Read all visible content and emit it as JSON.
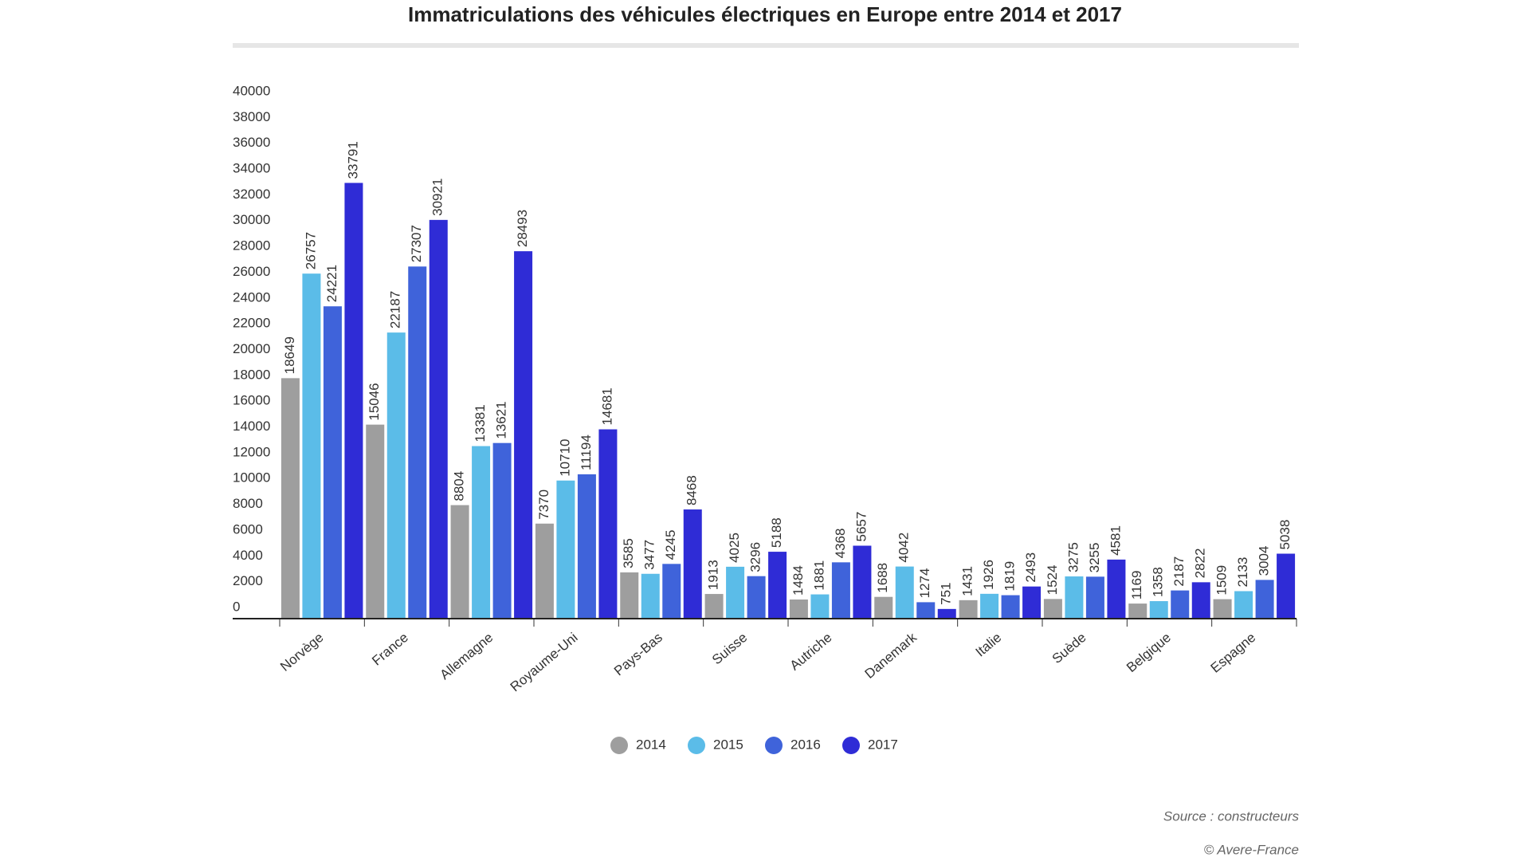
{
  "chart_data": {
    "type": "bar",
    "title": "Immatriculations des véhicules électriques en Europe entre 2014 et 2017",
    "categories": [
      "Norvège",
      "France",
      "Allemagne",
      "Royaume-Uni",
      "Pays-Bas",
      "Suisse",
      "Autriche",
      "Danemark",
      "Italie",
      "Suède",
      "Belgique",
      "Espagne"
    ],
    "series": [
      {
        "name": "2014",
        "color": "#9e9e9e",
        "values": [
          18649,
          15046,
          8804,
          7370,
          3585,
          1913,
          1484,
          1688,
          1431,
          1524,
          1169,
          1509
        ]
      },
      {
        "name": "2015",
        "color": "#5bbce8",
        "values": [
          26757,
          22187,
          13381,
          10710,
          3477,
          4025,
          1881,
          4042,
          1926,
          3275,
          1358,
          2133
        ]
      },
      {
        "name": "2016",
        "color": "#3f63da",
        "values": [
          24221,
          27307,
          13621,
          11194,
          4245,
          3296,
          4368,
          1274,
          1819,
          3255,
          2187,
          3004
        ]
      },
      {
        "name": "2017",
        "color": "#2f2cd6",
        "values": [
          33791,
          30921,
          28493,
          14681,
          8468,
          5188,
          5657,
          751,
          2493,
          4581,
          2822,
          5038
        ]
      }
    ],
    "ylim": [
      0,
      40000
    ],
    "yticks": [
      0,
      2000,
      4000,
      6000,
      8000,
      10000,
      12000,
      14000,
      16000,
      18000,
      20000,
      22000,
      24000,
      26000,
      28000,
      30000,
      32000,
      34000,
      36000,
      38000,
      40000
    ],
    "grid": false,
    "legend": "bottom",
    "source": "Source : constructeurs",
    "credit": "© Avere-France"
  }
}
